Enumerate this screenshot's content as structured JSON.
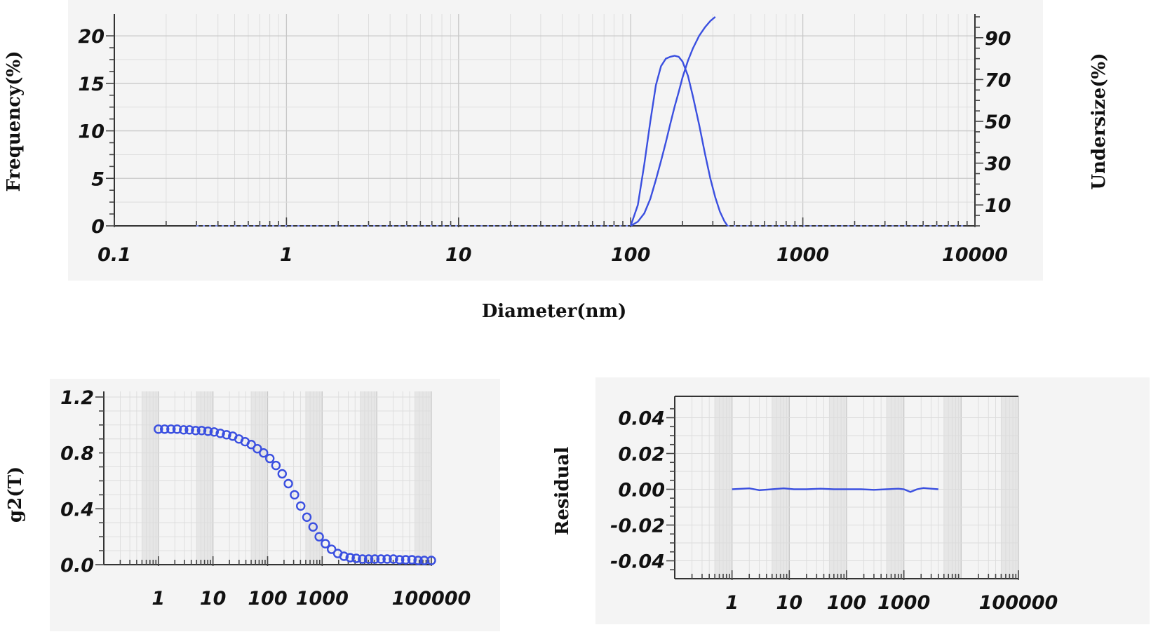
{
  "chart_data": [
    {
      "id": "size-distribution",
      "type": "line",
      "xlabel": "Diameter(nm)",
      "ylabel": "Frequency(%)",
      "y2label": "Undersize(%)",
      "xscale": "log",
      "xlim": [
        0.1,
        10000
      ],
      "ylim": [
        0,
        22
      ],
      "y2lim": [
        0,
        100
      ],
      "xticks": [
        0.1,
        1,
        10,
        100,
        1000,
        10000
      ],
      "xtick_labels": [
        "0.1",
        "1",
        "10",
        "100",
        "1000",
        "10000"
      ],
      "yticks": [
        0,
        5,
        10,
        15,
        20
      ],
      "ytick_labels": [
        "0",
        "5",
        "10",
        "15",
        "20"
      ],
      "y2ticks": [
        10,
        30,
        50,
        70,
        90
      ],
      "y2tick_labels": [
        "10",
        "30",
        "50",
        "70",
        "90"
      ],
      "grid": true,
      "series": [
        {
          "axis": "left",
          "x": [
            100,
            110,
            120,
            130,
            140,
            150,
            160,
            170,
            180,
            190,
            200,
            215,
            230,
            250,
            270,
            290,
            310,
            330,
            350,
            365
          ],
          "y": [
            0,
            2.2,
            6.5,
            11,
            14.8,
            16.8,
            17.6,
            17.8,
            17.9,
            17.8,
            17.3,
            15.8,
            13.6,
            10.6,
            7.6,
            5.0,
            3.0,
            1.5,
            0.5,
            0
          ]
        },
        {
          "axis": "right",
          "x": [
            100,
            110,
            120,
            130,
            140,
            150,
            160,
            170,
            180,
            190,
            200,
            215,
            230,
            250,
            270,
            290,
            310
          ],
          "y": [
            0,
            2,
            6,
            13,
            22,
            31,
            40,
            49,
            57,
            64,
            71,
            79,
            85,
            91,
            95,
            98,
            100
          ]
        }
      ]
    },
    {
      "id": "correlation",
      "type": "scatter",
      "ylabel": "g2(T)",
      "xscale": "log",
      "xlim": [
        0.1,
        100000
      ],
      "ylim": [
        0,
        1.2
      ],
      "xticks": [
        1,
        10,
        100,
        1000,
        100000
      ],
      "xtick_labels": [
        "1",
        "10",
        "100",
        "1000",
        "100000"
      ],
      "yticks": [
        0,
        0.4,
        0.8,
        1.2
      ],
      "ytick_labels": [
        "0.0",
        "0.4",
        "0.8",
        "1.2"
      ],
      "grid": true,
      "series": [
        {
          "x": [
            1,
            1.3,
            1.7,
            2.2,
            2.9,
            3.7,
            4.8,
            6.2,
            8.1,
            10.5,
            13.6,
            17.7,
            23,
            29.8,
            38.7,
            50.2,
            65,
            84.5,
            110,
            142,
            185,
            240,
            311,
            404,
            524,
            680,
            883,
            1146,
            1487,
            1930,
            2505,
            3251,
            4219,
            5475,
            7105,
            9220,
            11965,
            15528,
            20151,
            26151,
            33937,
            44041,
            57153,
            74170,
            100000
          ],
          "y": [
            0.97,
            0.97,
            0.97,
            0.97,
            0.965,
            0.965,
            0.96,
            0.96,
            0.955,
            0.95,
            0.94,
            0.93,
            0.92,
            0.9,
            0.88,
            0.86,
            0.83,
            0.8,
            0.76,
            0.71,
            0.65,
            0.58,
            0.5,
            0.42,
            0.34,
            0.27,
            0.2,
            0.15,
            0.11,
            0.08,
            0.06,
            0.05,
            0.045,
            0.04,
            0.04,
            0.04,
            0.04,
            0.04,
            0.04,
            0.035,
            0.035,
            0.035,
            0.03,
            0.03,
            0.03
          ]
        }
      ]
    },
    {
      "id": "residual",
      "type": "line",
      "ylabel": "Residual",
      "xscale": "log",
      "xlim": [
        0.1,
        100000
      ],
      "ylim": [
        -0.05,
        0.05
      ],
      "xticks": [
        1,
        10,
        100,
        1000,
        100000
      ],
      "xtick_labels": [
        "1",
        "10",
        "100",
        "1000",
        "100000"
      ],
      "yticks": [
        -0.04,
        -0.02,
        0,
        0.02,
        0.04
      ],
      "ytick_labels": [
        "-0.04",
        "-0.02",
        "0.00",
        "0.02",
        "0.04"
      ],
      "grid": true,
      "series": [
        {
          "x": [
            1,
            2,
            3,
            5,
            8,
            12,
            20,
            35,
            60,
            100,
            180,
            300,
            500,
            800,
            1000,
            1300,
            1700,
            2200,
            3000,
            4000
          ],
          "y": [
            0,
            0.0005,
            -0.0005,
            0,
            0.0005,
            0,
            0,
            0.0003,
            0,
            0,
            0,
            -0.0003,
            0,
            0.0003,
            0,
            -0.0015,
            0,
            0.0007,
            0.0003,
            0
          ]
        }
      ]
    }
  ]
}
